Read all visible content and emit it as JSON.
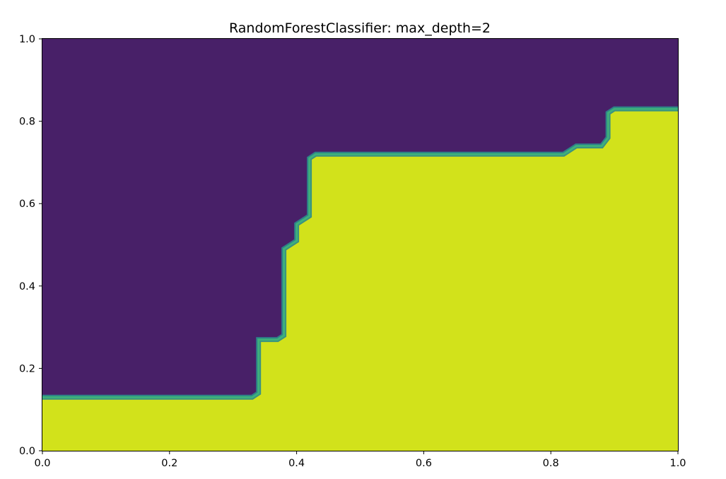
{
  "chart_data": {
    "type": "heatmap",
    "title": "RandomForestClassifier: max_depth=2",
    "xlabel": "",
    "ylabel": "",
    "xlim": [
      0.0,
      1.0
    ],
    "ylim": [
      0.0,
      1.0
    ],
    "xticks": [
      "0.0",
      "0.2",
      "0.4",
      "0.6",
      "0.8",
      "1.0"
    ],
    "yticks": [
      "0.0",
      "0.2",
      "0.4",
      "0.6",
      "0.8",
      "1.0"
    ],
    "grid": false,
    "legend": "none",
    "colors": {
      "class_0": "#482068",
      "class_1": "#d2e21b",
      "edge_outer": "#2a8a8c",
      "edge_inner": "#3fb57a"
    },
    "regions": [
      {
        "name": "class-0-region",
        "class": 0,
        "location": "upper-left"
      },
      {
        "name": "class-1-region",
        "class": 1,
        "location": "lower-right"
      }
    ],
    "boundary": [
      [
        0.0,
        0.13
      ],
      [
        0.33,
        0.13
      ],
      [
        0.34,
        0.14
      ],
      [
        0.34,
        0.27
      ],
      [
        0.37,
        0.27
      ],
      [
        0.38,
        0.28
      ],
      [
        0.38,
        0.49
      ],
      [
        0.4,
        0.51
      ],
      [
        0.4,
        0.55
      ],
      [
        0.42,
        0.57
      ],
      [
        0.42,
        0.71
      ],
      [
        0.43,
        0.72
      ],
      [
        0.82,
        0.72
      ],
      [
        0.84,
        0.74
      ],
      [
        0.88,
        0.74
      ],
      [
        0.89,
        0.76
      ],
      [
        0.89,
        0.82
      ],
      [
        0.9,
        0.83
      ],
      [
        1.0,
        0.83
      ]
    ]
  }
}
